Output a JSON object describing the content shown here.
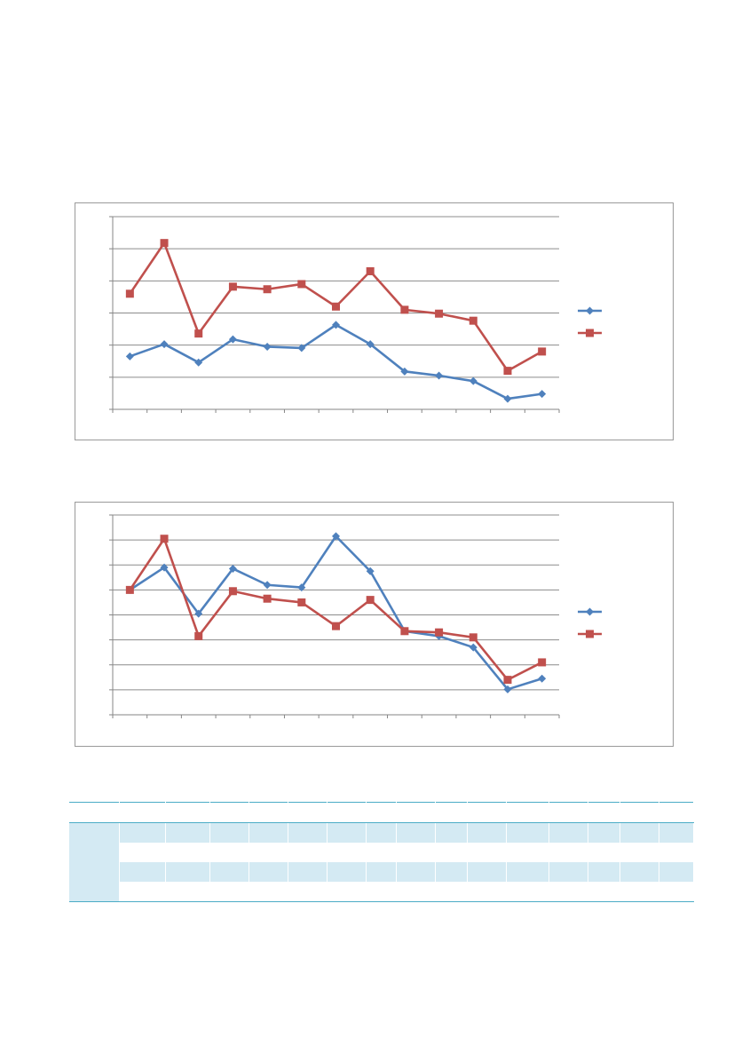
{
  "chart_data": [
    {
      "type": "line",
      "categories": [
        "",
        "",
        "",
        "",
        "",
        "",
        "",
        "",
        "",
        "",
        "",
        "",
        ""
      ],
      "ylim": [
        0,
        6
      ],
      "grid": true,
      "legend": "right",
      "series": [
        {
          "values": [
            1.65,
            2.03,
            1.46,
            2.18,
            1.95,
            1.91,
            2.63,
            2.03,
            1.18,
            1.05,
            0.88,
            0.33,
            0.48
          ],
          "color": "#4f81bd",
          "marker": "diamond"
        },
        {
          "values": [
            3.6,
            5.18,
            2.36,
            3.82,
            3.74,
            3.9,
            3.2,
            4.3,
            3.1,
            2.98,
            2.76,
            1.2,
            1.8
          ],
          "color": "#c0504d",
          "marker": "square"
        }
      ]
    },
    {
      "type": "line",
      "categories": [
        "",
        "",
        "",
        "",
        "",
        "",
        "",
        "",
        "",
        "",
        "",
        "",
        ""
      ],
      "ylim": [
        0,
        8
      ],
      "grid": true,
      "legend": "right",
      "series": [
        {
          "values": [
            5.0,
            5.9,
            4.05,
            5.85,
            5.2,
            5.1,
            7.15,
            5.75,
            3.35,
            3.15,
            2.7,
            1.02,
            1.45
          ],
          "color": "#4f81bd",
          "marker": "diamond"
        },
        {
          "values": [
            5.0,
            7.05,
            3.15,
            4.95,
            4.65,
            4.5,
            3.55,
            4.6,
            3.35,
            3.3,
            3.1,
            1.4,
            2.1
          ],
          "color": "#c0504d",
          "marker": "square"
        }
      ]
    }
  ],
  "table": {
    "columns": 16,
    "rows": 4,
    "band_color": "#d4eaf3",
    "rule_color": "#4bacc6"
  }
}
